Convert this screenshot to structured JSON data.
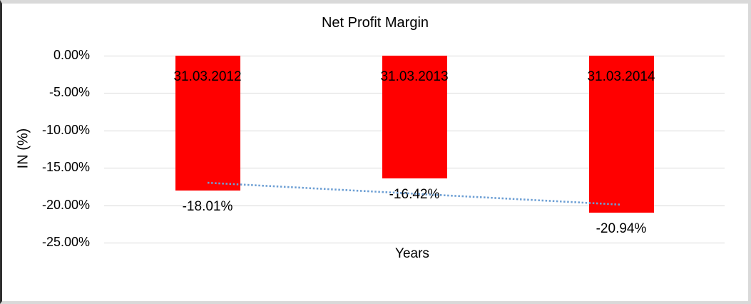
{
  "chart_data": {
    "type": "bar",
    "title": "Net Profit Margin",
    "xlabel": "Years",
    "ylabel": "IN (%)",
    "categories": [
      "31.03.2012",
      "31.03.2013",
      "31.03.2014"
    ],
    "values": [
      -18.01,
      -16.42,
      -20.94
    ],
    "value_labels": [
      "-18.01%",
      "-16.42%",
      "-20.94%"
    ],
    "y_ticks": [
      {
        "label": "0.00%",
        "value": 0
      },
      {
        "label": "-5.00%",
        "value": -5
      },
      {
        "label": "-10.00%",
        "value": -10
      },
      {
        "label": "-15.00%",
        "value": -15
      },
      {
        "label": "-20.00%",
        "value": -20
      },
      {
        "label": "-25.00%",
        "value": -25
      }
    ],
    "ylim": [
      -25,
      0
    ],
    "grid": true,
    "legend": false,
    "colors": {
      "bar": "#ff0000",
      "gridline": "#d9d9d9",
      "text": "#000000",
      "trendline": "#6d9fd4"
    },
    "trendline": {
      "type": "linear",
      "style": "dotted",
      "start_value": -16.99,
      "end_value": -19.92
    }
  }
}
